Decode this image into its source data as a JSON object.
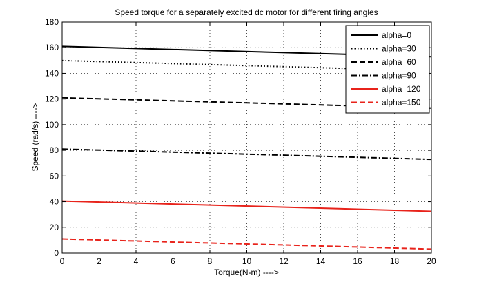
{
  "chart_data": {
    "type": "line",
    "title": "Speed torque for a separately excited dc motor for different firing angles",
    "xlabel": "Torque(N-m) ---->",
    "ylabel": "Speed (rad/s) ---->",
    "xlim": [
      0,
      20
    ],
    "ylim": [
      0,
      180
    ],
    "xticks": [
      "0",
      "2",
      "4",
      "6",
      "8",
      "10",
      "12",
      "14",
      "16",
      "18",
      "20"
    ],
    "yticks": [
      "0",
      "20",
      "40",
      "60",
      "80",
      "100",
      "120",
      "140",
      "160",
      "180"
    ],
    "grid": true,
    "legend_position": "top-right",
    "x": [
      0,
      20
    ],
    "series": [
      {
        "name": "alpha=0",
        "values": [
          161,
          153
        ],
        "color": "#000000",
        "style": "solid"
      },
      {
        "name": "alpha=30",
        "values": [
          150,
          142
        ],
        "color": "#000000",
        "style": "dotted"
      },
      {
        "name": "alpha=60",
        "values": [
          121,
          113
        ],
        "color": "#000000",
        "style": "dashed"
      },
      {
        "name": "alpha=90",
        "values": [
          81,
          73
        ],
        "color": "#000000",
        "style": "dashdot"
      },
      {
        "name": "alpha=120",
        "values": [
          40.5,
          32.5
        ],
        "color": "#e8231b",
        "style": "solid"
      },
      {
        "name": "alpha=150",
        "values": [
          11,
          3
        ],
        "color": "#e8231b",
        "style": "dashed"
      }
    ]
  }
}
